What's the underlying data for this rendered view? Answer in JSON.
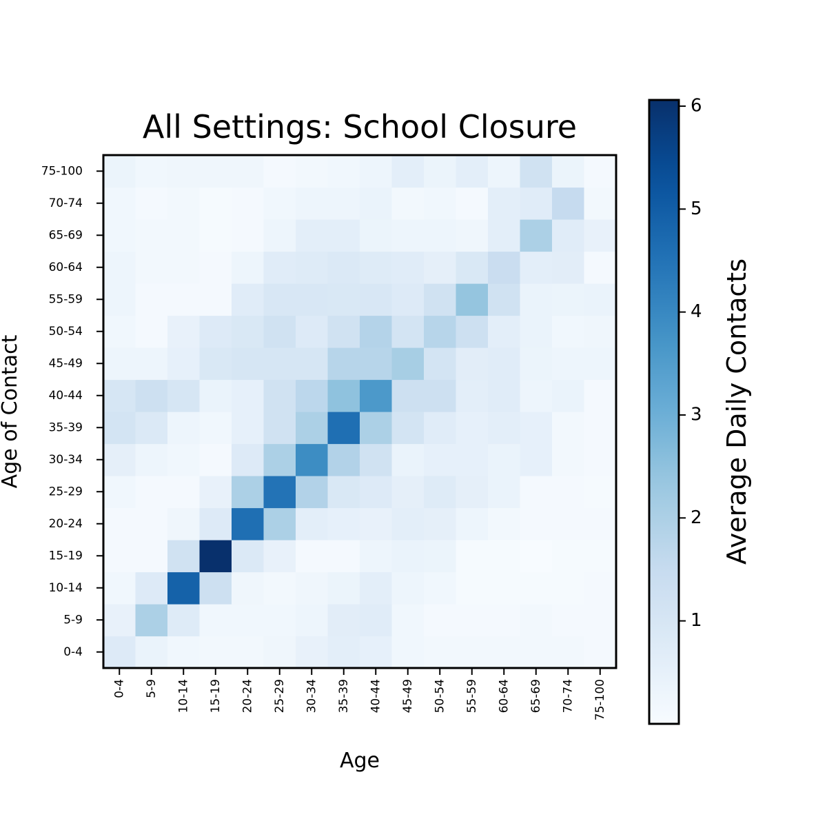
{
  "chart_data": {
    "type": "heatmap",
    "title": "All Settings: School Closure",
    "xlabel": "Age",
    "ylabel": "Age of Contact",
    "colorbar_label": "Average Daily Contacts",
    "colormap": "Blues",
    "vmin": 0,
    "vmax": 6.06,
    "colorbar_ticks": [
      1,
      2,
      3,
      4,
      5,
      6
    ],
    "colorbar_tick_labels": [
      "1",
      "2",
      "3",
      "4",
      "5",
      "6"
    ],
    "x_categories": [
      "0-4",
      "5-9",
      "10-14",
      "15-19",
      "20-24",
      "25-29",
      "30-34",
      "35-39",
      "40-44",
      "45-49",
      "50-54",
      "55-59",
      "60-64",
      "65-69",
      "70-74",
      "75-100"
    ],
    "y_categories": [
      "0-4",
      "5-9",
      "10-14",
      "15-19",
      "20-24",
      "25-29",
      "30-34",
      "35-39",
      "40-44",
      "45-49",
      "50-54",
      "55-59",
      "60-64",
      "65-69",
      "70-74",
      "75-100"
    ],
    "values_note_rows": "rows ordered by y_categories (index 0 = 0-4 at bottom), columns by x_categories",
    "values": [
      [
        0.8,
        0.4,
        0.2,
        0.15,
        0.15,
        0.25,
        0.45,
        0.6,
        0.5,
        0.2,
        0.15,
        0.15,
        0.15,
        0.15,
        0.15,
        0.1
      ],
      [
        0.45,
        2.0,
        0.75,
        0.2,
        0.2,
        0.2,
        0.3,
        0.65,
        0.7,
        0.2,
        0.1,
        0.1,
        0.1,
        0.15,
        0.1,
        0.1
      ],
      [
        0.2,
        0.8,
        4.9,
        1.3,
        0.25,
        0.15,
        0.25,
        0.35,
        0.6,
        0.3,
        0.2,
        0.05,
        0.05,
        0.05,
        0.05,
        0.1
      ],
      [
        0.1,
        0.1,
        1.2,
        6.05,
        0.85,
        0.45,
        0.1,
        0.1,
        0.3,
        0.4,
        0.35,
        0.05,
        0.05,
        0.0,
        0.05,
        0.05
      ],
      [
        0.1,
        0.1,
        0.25,
        0.8,
        4.6,
        2.0,
        0.6,
        0.5,
        0.45,
        0.6,
        0.55,
        0.3,
        0.15,
        0.1,
        0.1,
        0.1
      ],
      [
        0.2,
        0.1,
        0.1,
        0.45,
        2.0,
        4.5,
        1.9,
        0.9,
        0.8,
        0.55,
        0.75,
        0.55,
        0.4,
        0.1,
        0.1,
        0.05
      ],
      [
        0.55,
        0.3,
        0.2,
        0.1,
        0.8,
        2.0,
        3.9,
        1.9,
        1.2,
        0.4,
        0.5,
        0.5,
        0.4,
        0.5,
        0.15,
        0.1
      ],
      [
        1.1,
        0.85,
        0.3,
        0.2,
        0.5,
        1.2,
        2.0,
        4.6,
        2.0,
        1.1,
        0.7,
        0.5,
        0.6,
        0.5,
        0.15,
        0.1
      ],
      [
        1.0,
        1.3,
        1.0,
        0.4,
        0.5,
        1.2,
        1.7,
        2.5,
        3.6,
        1.3,
        1.3,
        0.6,
        0.7,
        0.3,
        0.4,
        0.1
      ],
      [
        0.3,
        0.3,
        0.5,
        0.9,
        1.0,
        1.0,
        1.0,
        1.8,
        1.8,
        2.1,
        1.1,
        0.65,
        0.7,
        0.35,
        0.3,
        0.3
      ],
      [
        0.2,
        0.1,
        0.45,
        0.8,
        0.9,
        1.2,
        0.8,
        1.2,
        1.85,
        1.1,
        1.8,
        1.3,
        0.6,
        0.4,
        0.2,
        0.25
      ],
      [
        0.3,
        0.1,
        0.1,
        0.1,
        0.7,
        0.95,
        0.95,
        0.9,
        0.95,
        0.8,
        1.2,
        2.4,
        1.2,
        0.4,
        0.35,
        0.4
      ],
      [
        0.3,
        0.15,
        0.15,
        0.1,
        0.3,
        0.7,
        0.75,
        0.85,
        0.75,
        0.7,
        0.55,
        0.9,
        1.4,
        0.6,
        0.65,
        0.1
      ],
      [
        0.2,
        0.15,
        0.15,
        0.05,
        0.1,
        0.3,
        0.6,
        0.6,
        0.35,
        0.3,
        0.3,
        0.25,
        0.6,
        2.0,
        0.7,
        0.45
      ],
      [
        0.2,
        0.1,
        0.15,
        0.05,
        0.1,
        0.2,
        0.3,
        0.3,
        0.4,
        0.15,
        0.2,
        0.1,
        0.6,
        0.7,
        1.5,
        0.15
      ],
      [
        0.35,
        0.2,
        0.25,
        0.25,
        0.25,
        0.1,
        0.15,
        0.2,
        0.3,
        0.6,
        0.35,
        0.6,
        0.3,
        1.2,
        0.35,
        0.1
      ]
    ]
  }
}
